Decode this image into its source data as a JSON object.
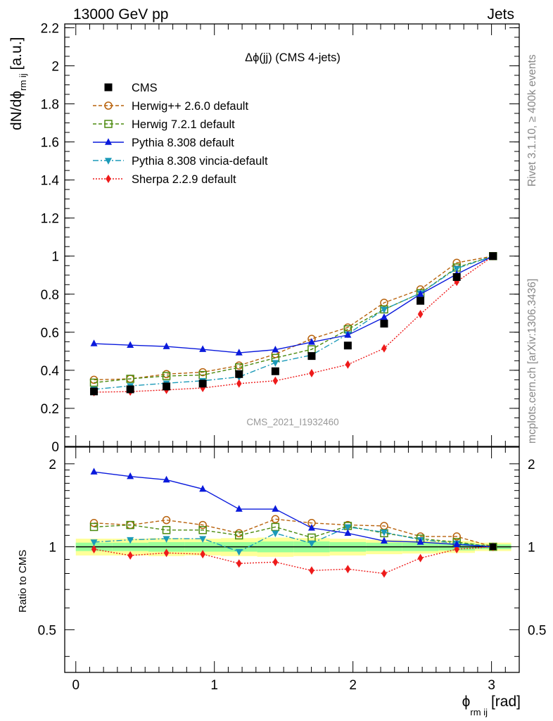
{
  "header": {
    "left": "13000 GeV pp",
    "right": "Jets"
  },
  "side": {
    "rivet": "Rivet 3.1.10, ≥ 400k events",
    "mcplots": "mcplots.cern.ch [arXiv:1306.3436]"
  },
  "watermark": "CMS_2021_I1932460",
  "chart_data": {
    "type": "line",
    "title": "Δϕ(jj) (CMS 4-jets)",
    "xlabel": "ϕ rm ij [rad]",
    "xlabel_main": "ϕ",
    "xlabel_sub": "rm ij",
    "xlabel_unit": "[rad]",
    "ylabel": "dN/dϕ rm ij [a.u.]",
    "ylabel_main": "dN/dϕ",
    "ylabel_sub": "rm ij",
    "ylabel_unit": "[a.u.]",
    "ratio_ylabel": "Ratio to CMS",
    "xlim": [
      -0.08,
      3.2
    ],
    "ylim": [
      0,
      2.22
    ],
    "ratio_ylim": [
      0.35,
      2.3
    ],
    "x_ticks": [
      "0",
      "1",
      "2",
      "3"
    ],
    "y_ticks": [
      "0",
      "0.2",
      "0.4",
      "0.6",
      "0.8",
      "1",
      "1.2",
      "1.4",
      "1.6",
      "1.8",
      "2",
      "2.2"
    ],
    "ratio_ticks": [
      "0.5",
      "1",
      "2"
    ],
    "x": [
      0.131,
      0.393,
      0.654,
      0.916,
      1.178,
      1.44,
      1.702,
      1.963,
      2.225,
      2.487,
      2.749,
      3.011
    ],
    "band_edges": [
      0,
      0.262,
      0.524,
      0.785,
      1.047,
      1.309,
      1.571,
      1.833,
      2.094,
      2.356,
      2.618,
      2.88,
      3.142
    ],
    "band_inner": [
      0.035,
      0.035,
      0.04,
      0.04,
      0.04,
      0.045,
      0.045,
      0.04,
      0.035,
      0.035,
      0.03,
      0.02
    ],
    "band_outer": [
      0.07,
      0.07,
      0.075,
      0.07,
      0.075,
      0.08,
      0.075,
      0.07,
      0.06,
      0.055,
      0.05,
      0.035
    ],
    "series": [
      {
        "name": "CMS",
        "color": "#000000",
        "marker": "square",
        "dash": "",
        "values": [
          0.289,
          0.3,
          0.315,
          0.33,
          0.38,
          0.395,
          0.475,
          0.53,
          0.645,
          0.765,
          0.89,
          1.0
        ],
        "ratio": [
          1,
          1,
          1,
          1,
          1,
          1,
          1,
          1,
          1,
          1,
          1,
          1
        ]
      },
      {
        "name": "Herwig++ 2.6.0 default",
        "color": "#b8620c",
        "marker": "circle-open",
        "dash": "5,3",
        "values": [
          0.35,
          0.355,
          0.38,
          0.39,
          0.425,
          0.485,
          0.565,
          0.625,
          0.755,
          0.825,
          0.965,
          1.0
        ],
        "ratio": [
          1.22,
          1.2,
          1.25,
          1.2,
          1.12,
          1.26,
          1.22,
          1.2,
          1.19,
          1.09,
          1.09,
          1.0
        ]
      },
      {
        "name": "Herwig 7.2.1 default",
        "color": "#4b8a0e",
        "marker": "square-open",
        "dash": "5,3",
        "values": [
          0.335,
          0.355,
          0.37,
          0.375,
          0.415,
          0.465,
          0.51,
          0.615,
          0.72,
          0.805,
          0.94,
          1.0
        ],
        "ratio": [
          1.18,
          1.2,
          1.15,
          1.15,
          1.1,
          1.18,
          1.08,
          1.19,
          1.12,
          1.07,
          1.04,
          1.0
        ]
      },
      {
        "name": "Pythia 8.308 default",
        "color": "#0a1adc",
        "marker": "triangle-up",
        "dash": "",
        "values": [
          0.54,
          0.532,
          0.525,
          0.51,
          0.492,
          0.508,
          0.548,
          0.585,
          0.678,
          0.8,
          0.905,
          1.0
        ],
        "ratio": [
          1.87,
          1.8,
          1.75,
          1.62,
          1.37,
          1.37,
          1.17,
          1.12,
          1.05,
          1.04,
          1.02,
          1.0
        ]
      },
      {
        "name": "Pythia 8.308 vincia-default",
        "color": "#1b9ab8",
        "marker": "triangle-down",
        "dash": "8,3,2,3",
        "values": [
          0.3,
          0.318,
          0.332,
          0.345,
          0.365,
          0.44,
          0.48,
          0.59,
          0.72,
          0.805,
          0.935,
          1.0
        ],
        "ratio": [
          1.04,
          1.06,
          1.07,
          1.07,
          0.96,
          1.12,
          1.03,
          1.18,
          1.13,
          1.06,
          1.03,
          1.0
        ]
      },
      {
        "name": "Sherpa 2.2.9 default",
        "color": "#ee1a1a",
        "marker": "diamond",
        "dash": "2,2",
        "values": [
          0.285,
          0.288,
          0.297,
          0.307,
          0.33,
          0.345,
          0.385,
          0.43,
          0.515,
          0.695,
          0.865,
          1.0
        ],
        "ratio": [
          0.98,
          0.93,
          0.95,
          0.94,
          0.87,
          0.88,
          0.82,
          0.83,
          0.8,
          0.91,
          0.98,
          1.0
        ]
      }
    ]
  }
}
